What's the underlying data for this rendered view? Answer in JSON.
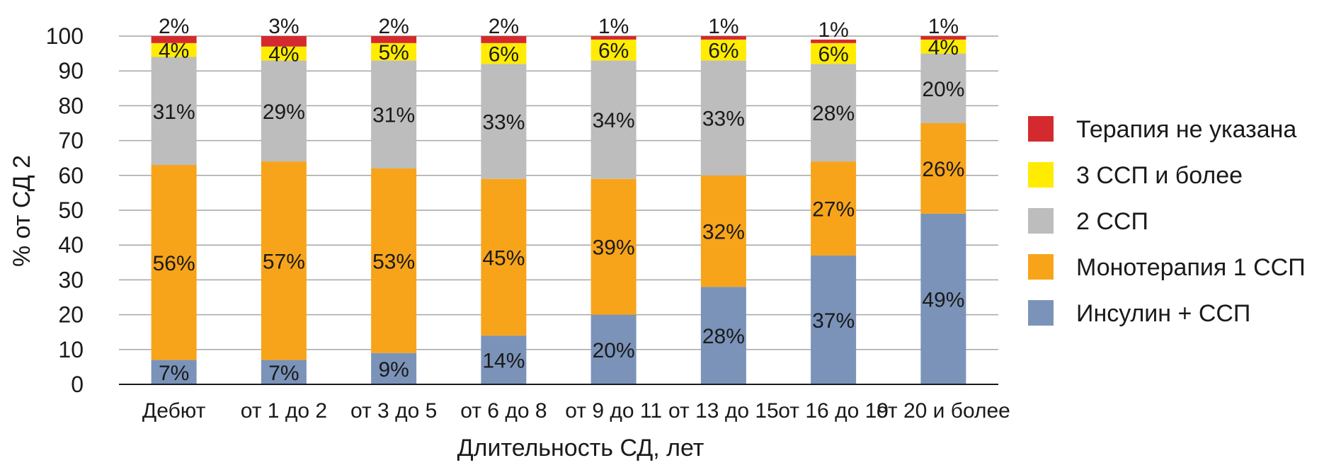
{
  "chart_data": {
    "type": "bar",
    "stacked": true,
    "xlabel": "Длительность СД, лет",
    "ylabel": "% от СД 2",
    "ylim": [
      0,
      100
    ],
    "yticks": [
      0,
      10,
      20,
      30,
      40,
      50,
      60,
      70,
      80,
      90,
      100
    ],
    "grid": true,
    "legend_position": "right",
    "categories": [
      "Дебют",
      "от 1 до 2",
      "от 3 до 5",
      "от 6 до 8",
      "от 9 до 11",
      "от 13 до 15",
      "от 16 до 19",
      "от 20 и более"
    ],
    "series": [
      {
        "name": "Инсулин + ССП",
        "color": "#7b93b9",
        "values": [
          7,
          7,
          9,
          14,
          20,
          28,
          37,
          49
        ],
        "labels": [
          "7%",
          "7%",
          "9%",
          "14%",
          "20%",
          "28%",
          "37%",
          "49%"
        ]
      },
      {
        "name": "Монотерапия 1 ССП",
        "color": "#f7a41b",
        "values": [
          56,
          57,
          53,
          45,
          39,
          32,
          27,
          26
        ],
        "labels": [
          "56%",
          "57%",
          "53%",
          "45%",
          "39%",
          "32%",
          "27%",
          "26%"
        ]
      },
      {
        "name": "2 ССП",
        "color": "#bdbdbd",
        "values": [
          31,
          29,
          31,
          33,
          34,
          33,
          28,
          20
        ],
        "labels": [
          "31%",
          "29%",
          "31%",
          "33%",
          "34%",
          "33%",
          "28%",
          "20%"
        ]
      },
      {
        "name": "3 ССП и более",
        "color": "#ffec00",
        "values": [
          4,
          4,
          5,
          6,
          6,
          6,
          6,
          4
        ],
        "labels": [
          "4%",
          "4%",
          "5%",
          "6%",
          "6%",
          "6%",
          "6%",
          "4%"
        ]
      },
      {
        "name": "Терапия не указана",
        "color": "#d42a2f",
        "values": [
          2,
          3,
          2,
          2,
          1,
          1,
          1,
          1
        ],
        "labels": [
          "2%",
          "3%",
          "2%",
          "2%",
          "1%",
          "1%",
          "1%",
          "1%"
        ]
      }
    ]
  }
}
